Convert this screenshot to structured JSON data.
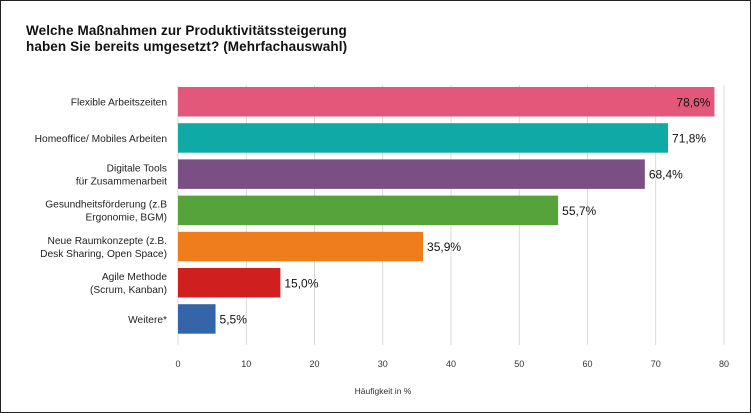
{
  "chart_data": {
    "type": "bar",
    "orientation": "horizontal",
    "title": [
      "Welche Maßnahmen zur Produktivitätssteigerung",
      "haben Sie bereits umgesetzt? (Mehrfachauswahl)"
    ],
    "xlabel": "Häufigkeit in %",
    "ylabel": "",
    "xlim": [
      0,
      80
    ],
    "xticks": [
      "0",
      "10",
      "20",
      "30",
      "40",
      "50",
      "60",
      "70",
      "80"
    ],
    "grid": "vertical",
    "categories": [
      [
        "Flexible Arbeitszeiten"
      ],
      [
        "Homeoffice/ Mobiles Arbeiten"
      ],
      [
        "Digitale Tools",
        "für Zusammenarbeit"
      ],
      [
        "Gesundheitsförderung (z.B",
        "Ergonomie, BGM)"
      ],
      [
        "Neue Raumkonzepte (z.B.",
        "Desk Sharing, Open Space)"
      ],
      [
        "Agile Methode",
        "(Scrum, Kanban)"
      ],
      [
        "Weitere*"
      ]
    ],
    "values": [
      78.6,
      71.8,
      68.4,
      55.7,
      35.9,
      15.0,
      5.5
    ],
    "value_labels": [
      "78,6%",
      "71,8%",
      "68,4%",
      "55,7%",
      "35,9%",
      "15,0%",
      "5,5%"
    ],
    "colors": [
      "#e3587a",
      "#0fa9a6",
      "#7a4f83",
      "#55a33a",
      "#f07d1b",
      "#d01f1f",
      "#3565a9"
    ]
  }
}
